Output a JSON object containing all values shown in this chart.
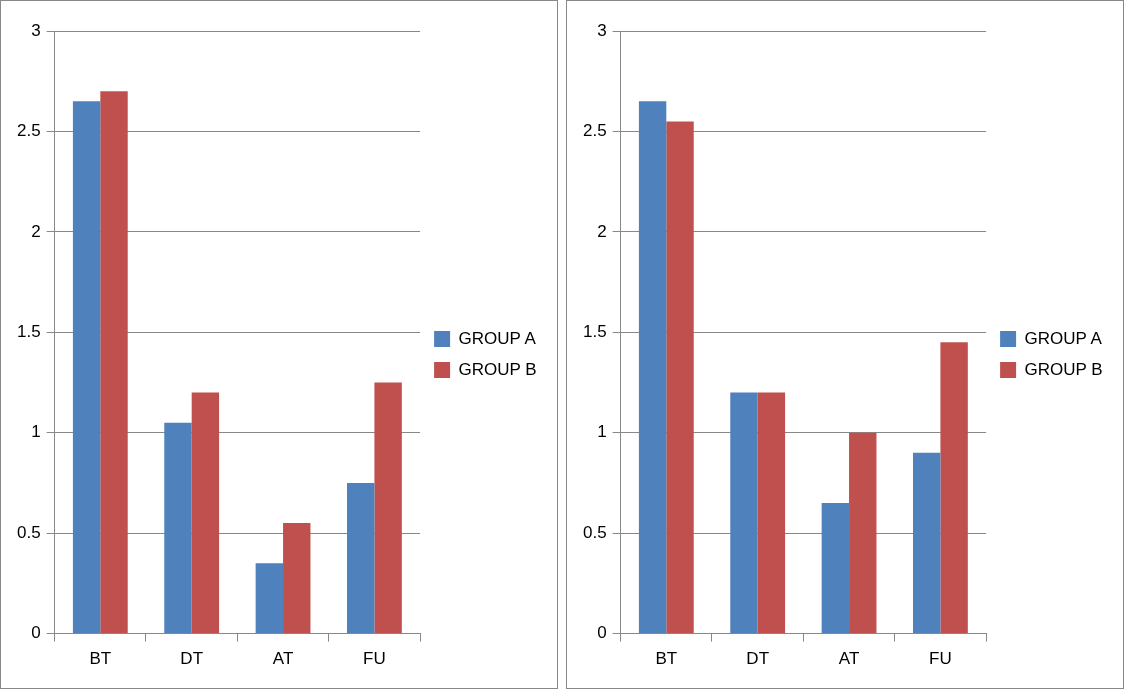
{
  "chart_data": [
    {
      "type": "bar",
      "categories": [
        "BT",
        "DT",
        "AT",
        "FU"
      ],
      "series": [
        {
          "name": "GROUP A",
          "color": "#4f81bd",
          "values": [
            2.65,
            1.05,
            0.35,
            0.75
          ]
        },
        {
          "name": "GROUP B",
          "color": "#c0504d",
          "values": [
            2.7,
            1.2,
            0.55,
            1.25
          ]
        }
      ],
      "ylim": [
        0,
        3
      ],
      "yticks": [
        0,
        0.5,
        1,
        1.5,
        2,
        2.5,
        3
      ],
      "grid": "y",
      "legend": "right"
    },
    {
      "type": "bar",
      "categories": [
        "BT",
        "DT",
        "AT",
        "FU"
      ],
      "series": [
        {
          "name": "GROUP A",
          "color": "#4f81bd",
          "values": [
            2.65,
            1.2,
            0.65,
            0.9
          ]
        },
        {
          "name": "GROUP B",
          "color": "#c0504d",
          "values": [
            2.55,
            1.2,
            1.0,
            1.45
          ]
        }
      ],
      "ylim": [
        0,
        3
      ],
      "yticks": [
        0,
        0.5,
        1,
        1.5,
        2,
        2.5,
        3
      ],
      "grid": "y",
      "legend": "right"
    }
  ]
}
